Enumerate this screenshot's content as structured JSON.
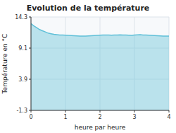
{
  "chart_data": {
    "type": "area",
    "title": "Evolution de la température",
    "x_label": "heure par heure",
    "y_label": "Température en °C",
    "x": [
      0,
      0.083,
      0.167,
      0.25,
      0.333,
      0.417,
      0.5,
      0.583,
      0.667,
      0.75,
      0.833,
      0.917,
      1.0,
      1.083,
      1.167,
      1.25,
      1.333,
      1.417,
      1.5,
      1.583,
      1.667,
      1.75,
      1.833,
      1.917,
      2.0,
      2.083,
      2.167,
      2.25,
      2.333,
      2.417,
      2.5,
      2.583,
      2.667,
      2.75,
      2.833,
      2.917,
      3.0,
      3.083,
      3.167,
      3.25,
      3.333,
      3.417,
      3.5,
      3.583,
      3.667,
      3.75,
      3.833,
      3.917,
      4.0
    ],
    "values": [
      13.2,
      12.8,
      12.5,
      12.2,
      12.0,
      11.8,
      11.6,
      11.5,
      11.4,
      11.35,
      11.3,
      11.28,
      11.25,
      11.22,
      11.2,
      11.18,
      11.15,
      11.1,
      11.1,
      11.12,
      11.15,
      11.18,
      11.2,
      11.22,
      11.25,
      11.28,
      11.3,
      11.28,
      11.25,
      11.28,
      11.3,
      11.32,
      11.3,
      11.28,
      11.25,
      11.22,
      11.28,
      11.32,
      11.35,
      11.3,
      11.28,
      11.25,
      11.22,
      11.2,
      11.18,
      11.15,
      11.12,
      11.1,
      11.1
    ],
    "color": "#60c0d8",
    "xlim": [
      0,
      4
    ],
    "ylim": [
      -1.3,
      14.3
    ],
    "xticks": [
      0,
      1,
      2,
      3,
      4
    ],
    "yticks": [
      -1.3,
      3.9,
      9.1,
      14.3
    ],
    "grid": true
  }
}
